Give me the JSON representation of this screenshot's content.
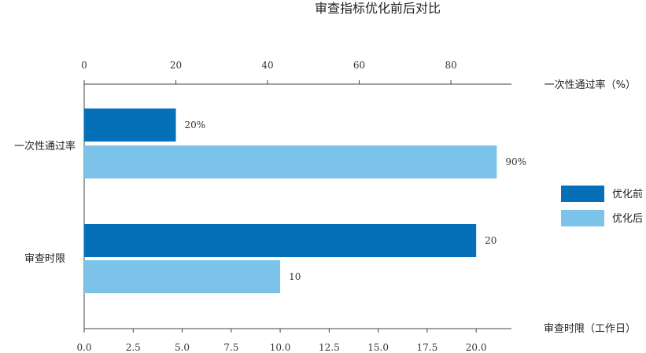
{
  "chart_data": {
    "type": "bar",
    "orientation": "horizontal",
    "title": "审查指标优化前后对比",
    "categories": [
      "一次性通过率",
      "审查时限"
    ],
    "series": [
      {
        "name": "优化前",
        "color": "#0570B8"
      },
      {
        "name": "优化后",
        "color": "#7BC3E8"
      }
    ],
    "bars": [
      {
        "category": "一次性通过率",
        "series": "优化前",
        "value": 20,
        "unit": "%",
        "axis": "top",
        "label": "20%"
      },
      {
        "category": "一次性通过率",
        "series": "优化后",
        "value": 90,
        "unit": "%",
        "axis": "top",
        "label": "90%"
      },
      {
        "category": "审查时限",
        "series": "优化前",
        "value": 20,
        "unit": "工作日",
        "axis": "bottom",
        "label": "20"
      },
      {
        "category": "审查时限",
        "series": "优化后",
        "value": 10,
        "unit": "工作日",
        "axis": "bottom",
        "label": "10"
      }
    ],
    "top_axis": {
      "label": "一次性通过率（%）",
      "range": [
        0,
        93.2
      ],
      "ticks": [
        0,
        20,
        40,
        60,
        80
      ],
      "tick_labels": [
        "0",
        "20",
        "40",
        "60",
        "80"
      ]
    },
    "bottom_axis": {
      "label": "审查时限（工作日）",
      "range": [
        0,
        21.8
      ],
      "ticks": [
        0,
        2.5,
        5,
        7.5,
        10,
        12.5,
        15,
        17.5,
        20
      ],
      "tick_labels": [
        "0.0",
        "2.5",
        "5.0",
        "7.5",
        "10.0",
        "12.5",
        "15.0",
        "17.5",
        "20.0"
      ]
    },
    "legend_position": "right",
    "grid": false
  }
}
